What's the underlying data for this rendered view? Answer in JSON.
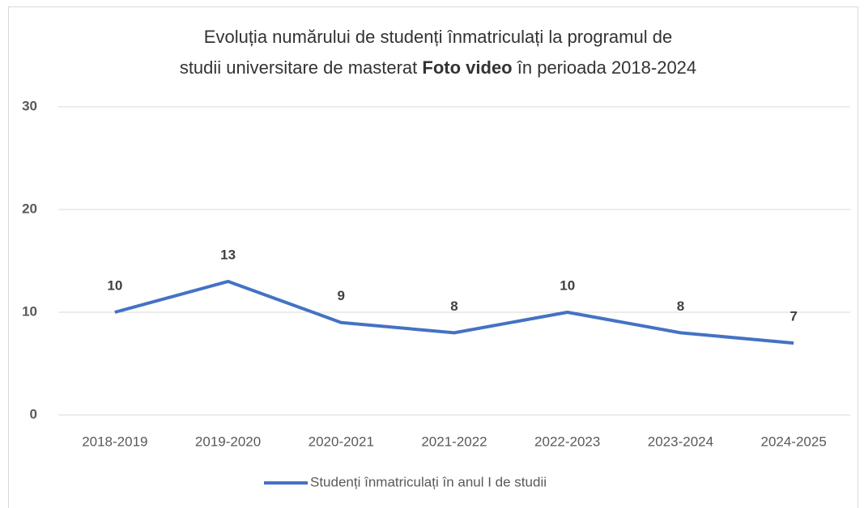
{
  "chart_data": {
    "type": "line",
    "title": [
      "Evoluția numărului de studenți înmatriculați la programul de",
      "studii universitare de masterat",
      "Foto video",
      "în perioada 2018-2024"
    ],
    "categories": [
      "2018-2019",
      "2019-2020",
      "2020-2021",
      "2021-2022",
      "2022-2023",
      "2023-2024",
      "2024-2025"
    ],
    "series": [
      {
        "name": "Studenți înmatriculați în anul I de studii",
        "color": "#4472c4",
        "values": [
          10,
          13,
          9,
          8,
          10,
          8,
          7
        ]
      }
    ],
    "ylim": [
      0,
      30
    ],
    "yticks": [
      0,
      10,
      20,
      30
    ],
    "grid": true,
    "legend": "bottom"
  }
}
